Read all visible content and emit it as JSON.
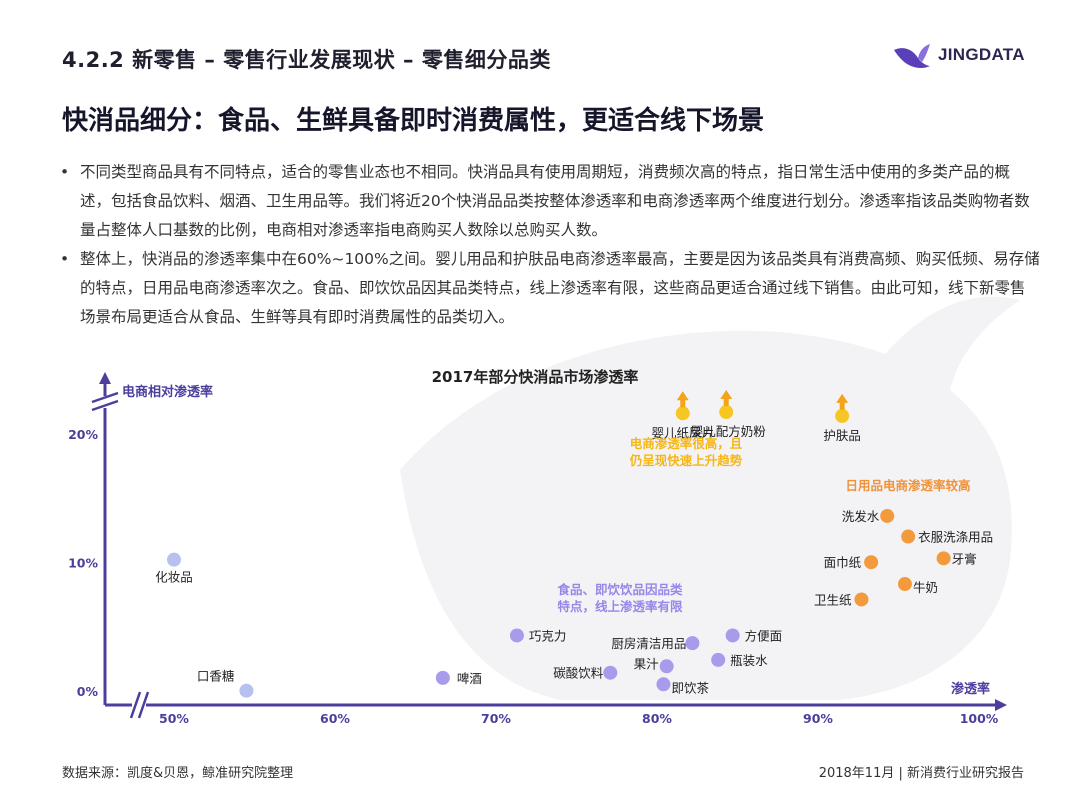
{
  "header": {
    "title": "4.2.2 新零售 – 零售行业发展现状 – 零售细分品类",
    "logo_text": "JINGDATA"
  },
  "headline": "快消品细分：食品、生鲜具备即时消费属性，更适合线下场景",
  "bullets": [
    "不同类型商品具有不同特点，适合的零售业态也不相同。快消品具有使用周期短，消费频次高的特点，指日常生活中使用的多类产品的概述，包括食品饮料、烟酒、卫生用品等。我们将近20个快消品品类按整体渗透率和电商渗透率两个维度进行划分。渗透率指该品类购物者数量占整体人口基数的比例，电商相对渗透率指电商购买人数除以总购买人数。",
    "整体上，快消品的渗透率集中在60%~100%之间。婴儿用品和护肤品电商渗透率最高，主要是因为该品类具有消费高频、购买低频、易存储的特点，日用品电商渗透率次之。食品、即饮饮品因其品类特点，线上渗透率有限，这些商品更适合通过线下销售。由此可知，线下新零售场景布局更适合从食品、生鲜等具有即时消费属性的品类切入。"
  ],
  "chart_data": {
    "type": "scatter",
    "title": "2017年部分快消品市场渗透率",
    "xlabel": "渗透率",
    "ylabel": "电商相对渗透率",
    "x_ticks": [
      "50%",
      "60%",
      "70%",
      "80%",
      "90%",
      "100%"
    ],
    "x_tick_values": [
      50,
      60,
      70,
      80,
      90,
      100
    ],
    "y_ticks": [
      "0%",
      "10%",
      "20%"
    ],
    "y_tick_values": [
      0,
      10,
      20
    ],
    "xlim": [
      46,
      101
    ],
    "ylim": [
      0,
      24
    ],
    "axis_breaks": true,
    "grid": false,
    "colors": {
      "axis": "#4b3f9e",
      "cosmetic": "#b7c1ef",
      "food": "#a79bec",
      "daily": "#f39a3c",
      "baby": "#f6c623",
      "baby_arrow": "#f2a51c"
    },
    "points": [
      {
        "label": "化妆品",
        "x": 50,
        "y": 10.3,
        "group": "cosmetic"
      },
      {
        "label": "口香糖",
        "x": 54.5,
        "y": 0.1,
        "group": "cosmetic"
      },
      {
        "label": "啤酒",
        "x": 66.7,
        "y": 1.1,
        "group": "food"
      },
      {
        "label": "巧克力",
        "x": 71.3,
        "y": 4.4,
        "group": "food"
      },
      {
        "label": "碳酸饮料",
        "x": 77.1,
        "y": 1.5,
        "group": "food"
      },
      {
        "label": "厨房清洁用品",
        "x": 82.2,
        "y": 3.8,
        "group": "food"
      },
      {
        "label": "果汁",
        "x": 80.6,
        "y": 2.0,
        "group": "food"
      },
      {
        "label": "即饮茶",
        "x": 80.4,
        "y": 0.6,
        "group": "food"
      },
      {
        "label": "瓶装水",
        "x": 83.8,
        "y": 2.5,
        "group": "food"
      },
      {
        "label": "方便面",
        "x": 84.7,
        "y": 4.4,
        "group": "food"
      },
      {
        "label": "洗发水",
        "x": 94.3,
        "y": 13.7,
        "group": "daily"
      },
      {
        "label": "衣服洗涤用品",
        "x": 95.6,
        "y": 12.1,
        "group": "daily"
      },
      {
        "label": "面巾纸",
        "x": 93.3,
        "y": 10.1,
        "group": "daily"
      },
      {
        "label": "牙膏",
        "x": 97.8,
        "y": 10.4,
        "group": "daily"
      },
      {
        "label": "牛奶",
        "x": 95.4,
        "y": 8.4,
        "group": "daily"
      },
      {
        "label": "卫生纸",
        "x": 92.7,
        "y": 7.2,
        "group": "daily"
      },
      {
        "label": "婴儿纸尿片",
        "x": 81.6,
        "y": 22.0,
        "group": "baby"
      },
      {
        "label": "婴儿配方奶粉",
        "x": 84.3,
        "y": 22.1,
        "group": "baby"
      },
      {
        "label": "护肤品",
        "x": 91.5,
        "y": 21.8,
        "group": "baby"
      }
    ],
    "annotations": [
      {
        "lines": [
          "电商渗透率很高，且",
          "仍呈现快速上升趋势"
        ],
        "color": "#f6b614"
      },
      {
        "lines": [
          "日用品电商渗透率较高"
        ],
        "color": "#f0923a"
      },
      {
        "lines": [
          "食品、即饮饮品因品类",
          "特点，线上渗透率有限"
        ],
        "color": "#9787e8"
      }
    ]
  },
  "footer": {
    "source": "数据来源：凯度&贝恩，鲸准研究院整理",
    "right": "2018年11月 | 新消费行业研究报告"
  }
}
